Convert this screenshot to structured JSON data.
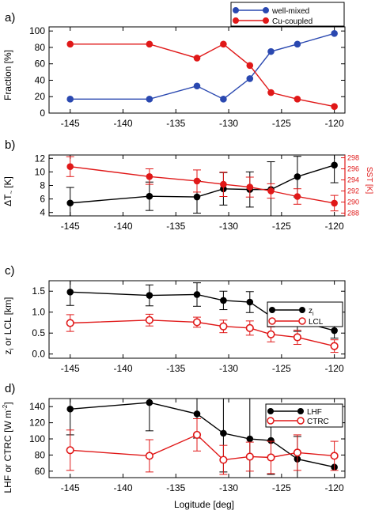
{
  "panels": [
    {
      "letter": "a)",
      "ylabel": "Fraction [%]",
      "ylabel2": "",
      "xlabel": "",
      "legend": [
        "well-mixed",
        "Cu-coupled"
      ]
    },
    {
      "letter": "b)",
      "ylabel": "ΔT",
      "ylabel_sub": "~",
      "ylabel_unit": "[K]",
      "ylabel2": "SST [K]",
      "xlabel": "",
      "legend": []
    },
    {
      "letter": "c)",
      "ylabel": "z",
      "ylabel_sub": "i",
      "ylabel_rest": " or LCL [km]",
      "ylabel2": "",
      "xlabel": "",
      "legend": [
        "z",
        "LCL"
      ],
      "legend_sub": "i"
    },
    {
      "letter": "d)",
      "ylabel": "LHF or CTRC [W m",
      "ylabel_sup": "-2",
      "ylabel_end": "]",
      "ylabel2": "",
      "xlabel": "Logitude [deg]",
      "legend": [
        "LHF",
        "CTRC"
      ]
    }
  ],
  "colors": {
    "black": "#000000",
    "blue": "#2a48b0",
    "red": "#e01818"
  },
  "chart_data": [
    {
      "type": "line",
      "panel": "a)",
      "x": [
        -145,
        -137.5,
        -133,
        -130.5,
        -128,
        -126,
        -123.5,
        -120
      ],
      "xlim": [
        -147,
        -119
      ],
      "ylim": [
        0,
        105
      ],
      "xticks": [
        -145,
        -140,
        -135,
        -130,
        -125,
        -120
      ],
      "yticks": [
        0,
        20,
        40,
        60,
        80,
        100
      ],
      "series": [
        {
          "name": "well-mixed",
          "color": "#2a48b0",
          "values": [
            17,
            17,
            33,
            17,
            42,
            75,
            84,
            97
          ]
        },
        {
          "name": "Cu-coupled",
          "color": "#e01818",
          "values": [
            84,
            84,
            67,
            84,
            58,
            25,
            17,
            8
          ]
        }
      ],
      "legend_position": "top-right"
    },
    {
      "type": "line",
      "panel": "b)",
      "x": [
        -145,
        -137.5,
        -133,
        -130.5,
        -128,
        -126,
        -123.5,
        -120
      ],
      "xlim": [
        -147,
        -119
      ],
      "ylim": [
        3.5,
        12.5
      ],
      "ylim_right": [
        287.5,
        298.5
      ],
      "xticks": [
        -145,
        -140,
        -135,
        -130,
        -125,
        -120
      ],
      "yticks": [
        4,
        6,
        8,
        10,
        12
      ],
      "yticks_right": [
        288,
        290,
        292,
        294,
        296,
        298
      ],
      "series": [
        {
          "color": "#000000",
          "axis": "left",
          "values": [
            5.4,
            6.4,
            6.3,
            7.5,
            7.4,
            7.4,
            9.3,
            11.0
          ],
          "errors": [
            2.3,
            2.1,
            2.4,
            2.4,
            2.6,
            4.1,
            3.0,
            2.6
          ]
        },
        {
          "color": "#e01818",
          "axis": "right",
          "values": [
            296.4,
            294.6,
            293.8,
            293.2,
            292.7,
            292.0,
            291.0,
            289.8
          ],
          "errors": [
            1.8,
            1.4,
            2.0,
            2.2,
            1.8,
            1.3,
            1.4,
            1.4
          ]
        }
      ]
    },
    {
      "type": "line",
      "panel": "c)",
      "x": [
        -145,
        -137.5,
        -133,
        -130.5,
        -128,
        -126,
        -123.5,
        -120
      ],
      "xlim": [
        -147,
        -119
      ],
      "ylim": [
        -0.1,
        1.75
      ],
      "xticks": [
        -145,
        -140,
        -135,
        -130,
        -125,
        -120
      ],
      "yticks": [
        0.0,
        0.5,
        1.0,
        1.5
      ],
      "series": [
        {
          "name": "z",
          "name_sub": "i",
          "color": "#000000",
          "marker": "filled",
          "values": [
            1.48,
            1.4,
            1.42,
            1.28,
            1.24,
            0.9,
            0.79,
            0.56
          ],
          "errors": [
            0.32,
            0.25,
            0.28,
            0.22,
            0.25,
            0.25,
            0.25,
            0.18
          ]
        },
        {
          "name": "LCL",
          "color": "#e01818",
          "marker": "open",
          "values": [
            0.74,
            0.81,
            0.76,
            0.66,
            0.62,
            0.47,
            0.4,
            0.19
          ],
          "errors": [
            0.2,
            0.14,
            0.12,
            0.15,
            0.17,
            0.18,
            0.17,
            0.15
          ]
        }
      ],
      "legend_position": "right"
    },
    {
      "type": "line",
      "panel": "d)",
      "x": [
        -145,
        -137.5,
        -133,
        -130.5,
        -128,
        -126,
        -123.5,
        -120
      ],
      "xlim": [
        -147,
        -119
      ],
      "ylim": [
        52,
        150
      ],
      "xticks": [
        -145,
        -140,
        -135,
        -130,
        -125,
        -120
      ],
      "yticks": [
        60,
        80,
        100,
        120,
        140
      ],
      "series": [
        {
          "name": "LHF",
          "color": "#000000",
          "marker": "filled",
          "values": [
            137,
            145,
            131,
            107,
            100,
            98,
            75,
            65
          ],
          "errors": [
            32,
            35,
            30,
            48,
            50,
            42,
            28,
            0
          ]
        },
        {
          "name": "CTRC",
          "color": "#e01818",
          "marker": "open",
          "values": [
            86,
            79,
            105,
            74,
            78,
            77,
            83,
            79
          ],
          "errors": [
            25,
            20,
            20,
            18,
            18,
            20,
            22,
            18
          ]
        }
      ],
      "legend_position": "top-right"
    }
  ]
}
